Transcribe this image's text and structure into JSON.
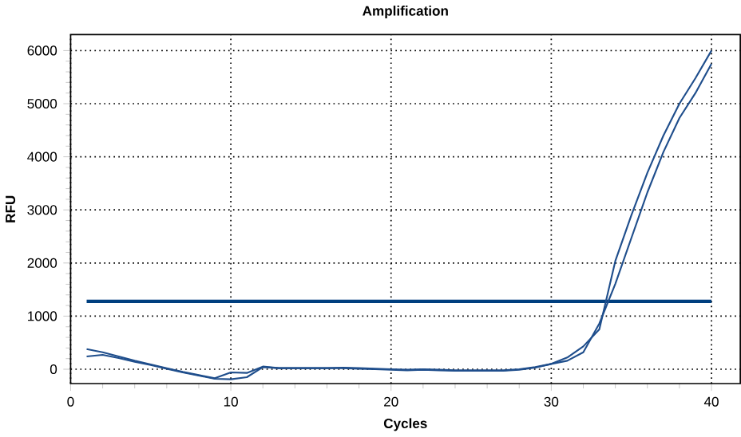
{
  "chart_data": {
    "type": "line",
    "title": "Amplification",
    "xlabel": "Cycles",
    "ylabel": "RFU",
    "x": [
      1,
      2,
      3,
      4,
      5,
      6,
      7,
      8,
      9,
      10,
      11,
      12,
      13,
      14,
      15,
      16,
      17,
      18,
      19,
      20,
      21,
      22,
      23,
      24,
      25,
      26,
      27,
      28,
      29,
      30,
      31,
      32,
      33,
      34,
      35,
      36,
      37,
      38,
      39,
      40
    ],
    "series": [
      {
        "color": "#1f4e8c",
        "values": [
          380,
          320,
          240,
          160,
          90,
          20,
          -50,
          -110,
          -170,
          -60,
          -70,
          50,
          20,
          20,
          20,
          20,
          30,
          20,
          10,
          0,
          -10,
          0,
          -10,
          -20,
          -20,
          -20,
          -20,
          0,
          40,
          100,
          220,
          430,
          750,
          2040,
          2900,
          3700,
          4400,
          5000,
          5480,
          6000
        ]
      },
      {
        "color": "#1f4e8c",
        "values": [
          240,
          270,
          210,
          140,
          80,
          10,
          -60,
          -120,
          -180,
          -190,
          -150,
          40,
          20,
          20,
          20,
          20,
          20,
          10,
          0,
          -10,
          -20,
          -10,
          -20,
          -30,
          -30,
          -30,
          -30,
          -10,
          30,
          100,
          160,
          320,
          860,
          1610,
          2470,
          3330,
          4090,
          4730,
          5200,
          5750
        ]
      }
    ],
    "xlim": [
      0,
      41.8
    ],
    "ylim": [
      -270,
      6300
    ],
    "xticks": [
      0,
      10,
      20,
      30,
      40
    ],
    "yticks": [
      0,
      1000,
      2000,
      3000,
      4000,
      5000,
      6000
    ],
    "grid": true,
    "ref_lines": [
      {
        "axis": "y",
        "value": 1280,
        "color": "#003f7f"
      }
    ]
  }
}
